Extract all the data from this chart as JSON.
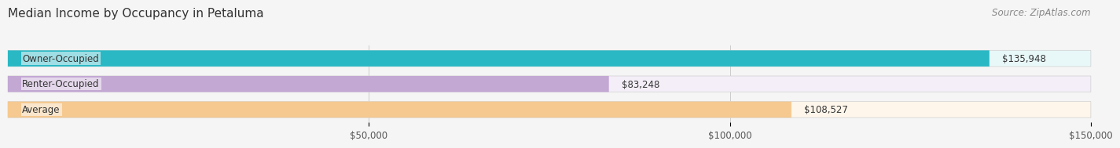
{
  "title": "Median Income by Occupancy in Petaluma",
  "source": "Source: ZipAtlas.com",
  "categories": [
    "Owner-Occupied",
    "Renter-Occupied",
    "Average"
  ],
  "values": [
    135948,
    83248,
    108527
  ],
  "bar_colors": [
    "#29b8c4",
    "#c4a8d4",
    "#f5c990"
  ],
  "bar_bg_colors": [
    "#e8f8f9",
    "#f3eef7",
    "#fef6ea"
  ],
  "value_labels": [
    "$135,948",
    "$83,248",
    "$108,527"
  ],
  "xlim": [
    0,
    150000
  ],
  "xticks": [
    0,
    50000,
    100000,
    150000
  ],
  "xtick_labels": [
    "$50,000",
    "$100,000",
    "$150,000"
  ],
  "background_color": "#f5f5f5",
  "title_fontsize": 11,
  "source_fontsize": 8.5,
  "label_fontsize": 8.5,
  "bar_height": 0.55
}
